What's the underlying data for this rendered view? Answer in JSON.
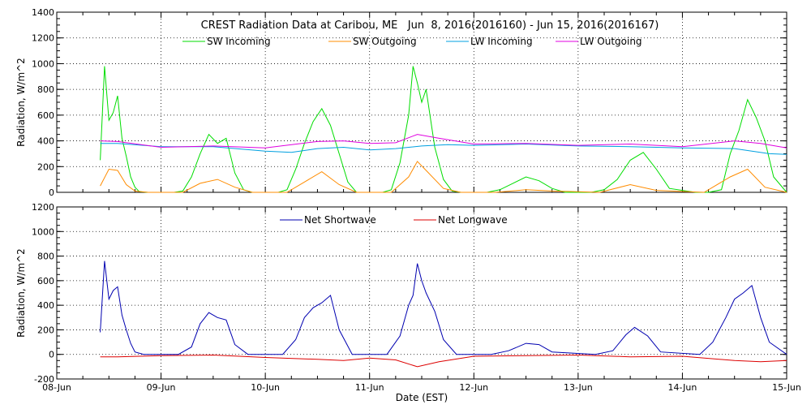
{
  "chart_data": [
    {
      "type": "line",
      "title": "CREST Radiation Data at Caribou, ME   Jun  8, 2016(2016160) - Jun 15, 2016(2016167)",
      "xlabel": "",
      "ylabel": "Radiation, W/m^2",
      "xlim": [
        "2016-06-08",
        "2016-06-15"
      ],
      "ylim": [
        0,
        1400
      ],
      "yticks": [
        0,
        200,
        400,
        600,
        800,
        1000,
        1200,
        1400
      ],
      "grid": true,
      "legend_position": "top",
      "series": [
        {
          "name": "SW Incoming",
          "color": "#00dd00",
          "x": [
            "2016-06-08T10:00",
            "2016-06-08T11:00",
            "2016-06-08T12:00",
            "2016-06-08T13:00",
            "2016-06-08T14:00",
            "2016-06-08T15:00",
            "2016-06-08T16:00",
            "2016-06-08T17:00",
            "2016-06-08T18:00",
            "2016-06-08T19:00",
            "2016-06-08T21:00",
            "2016-06-09T03:00",
            "2016-06-09T05:00",
            "2016-06-09T07:00",
            "2016-06-09T09:00",
            "2016-06-09T11:00",
            "2016-06-09T13:00",
            "2016-06-09T15:00",
            "2016-06-09T17:00",
            "2016-06-09T19:00",
            "2016-06-09T21:00",
            "2016-06-10T03:00",
            "2016-06-10T05:00",
            "2016-06-10T07:00",
            "2016-06-10T09:00",
            "2016-06-10T11:00",
            "2016-06-10T13:00",
            "2016-06-10T15:00",
            "2016-06-10T17:00",
            "2016-06-10T19:00",
            "2016-06-10T21:00",
            "2016-06-11T03:00",
            "2016-06-11T05:00",
            "2016-06-11T07:00",
            "2016-06-11T09:00",
            "2016-06-11T10:00",
            "2016-06-11T11:00",
            "2016-06-11T12:00",
            "2016-06-11T13:00",
            "2016-06-11T15:00",
            "2016-06-11T17:00",
            "2016-06-11T19:00",
            "2016-06-11T21:00",
            "2016-06-12T03:00",
            "2016-06-12T06:00",
            "2016-06-12T09:00",
            "2016-06-12T12:00",
            "2016-06-12T15:00",
            "2016-06-12T18:00",
            "2016-06-12T21:00",
            "2016-06-13T03:00",
            "2016-06-13T06:00",
            "2016-06-13T09:00",
            "2016-06-13T12:00",
            "2016-06-13T15:00",
            "2016-06-13T18:00",
            "2016-06-13T21:00",
            "2016-06-14T03:00",
            "2016-06-14T06:00",
            "2016-06-14T09:00",
            "2016-06-14T11:00",
            "2016-06-14T13:00",
            "2016-06-14T15:00",
            "2016-06-14T17:00",
            "2016-06-14T19:00",
            "2016-06-14T21:00",
            "2016-06-15T00:00"
          ],
          "values": [
            250,
            980,
            560,
            620,
            750,
            420,
            280,
            120,
            40,
            5,
            0,
            0,
            10,
            120,
            300,
            450,
            380,
            420,
            150,
            20,
            0,
            0,
            20,
            180,
            380,
            550,
            650,
            520,
            300,
            80,
            0,
            0,
            20,
            230,
            600,
            980,
            850,
            700,
            800,
            350,
            100,
            10,
            0,
            0,
            20,
            70,
            120,
            90,
            30,
            0,
            0,
            20,
            100,
            250,
            310,
            180,
            30,
            0,
            0,
            20,
            300,
            480,
            720,
            580,
            400,
            120,
            0
          ]
        },
        {
          "name": "SW Outgoing",
          "color": "#ff8c00",
          "x": [
            "2016-06-08T10:00",
            "2016-06-08T12:00",
            "2016-06-08T14:00",
            "2016-06-08T16:00",
            "2016-06-08T18:00",
            "2016-06-08T21:00",
            "2016-06-09T05:00",
            "2016-06-09T09:00",
            "2016-06-09T13:00",
            "2016-06-09T17:00",
            "2016-06-09T21:00",
            "2016-06-10T05:00",
            "2016-06-10T09:00",
            "2016-06-10T13:00",
            "2016-06-10T17:00",
            "2016-06-10T21:00",
            "2016-06-11T05:00",
            "2016-06-11T09:00",
            "2016-06-11T11:00",
            "2016-06-11T13:00",
            "2016-06-11T17:00",
            "2016-06-11T21:00",
            "2016-06-12T05:00",
            "2016-06-12T12:00",
            "2016-06-12T18:00",
            "2016-06-13T05:00",
            "2016-06-13T12:00",
            "2016-06-13T18:00",
            "2016-06-14T05:00",
            "2016-06-14T11:00",
            "2016-06-14T15:00",
            "2016-06-14T19:00",
            "2016-06-15T00:00"
          ],
          "values": [
            50,
            180,
            170,
            60,
            10,
            0,
            0,
            70,
            100,
            40,
            0,
            0,
            80,
            160,
            60,
            0,
            0,
            120,
            240,
            170,
            30,
            0,
            0,
            20,
            10,
            0,
            60,
            15,
            0,
            120,
            180,
            40,
            0
          ]
        },
        {
          "name": "LW Incoming",
          "color": "#00a0e0",
          "x": [
            "2016-06-08T10:00",
            "2016-06-08T14:00",
            "2016-06-09T00:00",
            "2016-06-09T12:00",
            "2016-06-10T00:00",
            "2016-06-10T06:00",
            "2016-06-10T12:00",
            "2016-06-10T18:00",
            "2016-06-11T00:00",
            "2016-06-11T06:00",
            "2016-06-11T12:00",
            "2016-06-11T18:00",
            "2016-06-12T00:00",
            "2016-06-12T12:00",
            "2016-06-13T00:00",
            "2016-06-13T12:00",
            "2016-06-14T00:00",
            "2016-06-14T12:00",
            "2016-06-14T20:00",
            "2016-06-15T00:00"
          ],
          "values": [
            380,
            380,
            355,
            355,
            320,
            310,
            340,
            350,
            330,
            340,
            360,
            370,
            365,
            375,
            360,
            355,
            345,
            340,
            300,
            295
          ]
        },
        {
          "name": "LW Outgoing",
          "color": "#e000e0",
          "x": [
            "2016-06-08T10:00",
            "2016-06-08T14:00",
            "2016-06-09T00:00",
            "2016-06-09T12:00",
            "2016-06-10T00:00",
            "2016-06-10T12:00",
            "2016-06-10T18:00",
            "2016-06-11T00:00",
            "2016-06-11T06:00",
            "2016-06-11T11:00",
            "2016-06-11T16:00",
            "2016-06-12T00:00",
            "2016-06-12T12:00",
            "2016-06-13T00:00",
            "2016-06-13T12:00",
            "2016-06-14T00:00",
            "2016-06-14T12:00",
            "2016-06-14T18:00",
            "2016-06-15T00:00"
          ],
          "values": [
            400,
            395,
            350,
            360,
            345,
            395,
            400,
            380,
            385,
            450,
            420,
            375,
            380,
            365,
            375,
            355,
            400,
            380,
            345
          ]
        }
      ]
    },
    {
      "type": "line",
      "title": "",
      "xlabel": "Date (EST)",
      "ylabel": "Radiation, W/m^2",
      "xlim": [
        "2016-06-08",
        "2016-06-15"
      ],
      "ylim": [
        -200,
        1200
      ],
      "yticks": [
        -200,
        0,
        200,
        400,
        600,
        800,
        1000,
        1200
      ],
      "xticks": [
        "2016-06-08",
        "2016-06-09",
        "2016-06-10",
        "2016-06-11",
        "2016-06-12",
        "2016-06-13",
        "2016-06-14",
        "2016-06-15"
      ],
      "xtick_labels": [
        "08-Jun",
        "09-Jun",
        "10-Jun",
        "11-Jun",
        "12-Jun",
        "13-Jun",
        "14-Jun",
        "15-Jun"
      ],
      "grid": true,
      "legend_position": "top",
      "series": [
        {
          "name": "Net Shortwave",
          "color": "#0000b0",
          "x": [
            "2016-06-08T10:00",
            "2016-06-08T11:00",
            "2016-06-08T12:00",
            "2016-06-08T13:00",
            "2016-06-08T14:00",
            "2016-06-08T15:00",
            "2016-06-08T16:00",
            "2016-06-08T17:00",
            "2016-06-08T18:00",
            "2016-06-08T20:00",
            "2016-06-09T04:00",
            "2016-06-09T07:00",
            "2016-06-09T09:00",
            "2016-06-09T11:00",
            "2016-06-09T13:00",
            "2016-06-09T15:00",
            "2016-06-09T17:00",
            "2016-06-09T20:00",
            "2016-06-10T04:00",
            "2016-06-10T07:00",
            "2016-06-10T09:00",
            "2016-06-10T11:00",
            "2016-06-10T13:00",
            "2016-06-10T15:00",
            "2016-06-10T17:00",
            "2016-06-10T20:00",
            "2016-06-11T04:00",
            "2016-06-11T07:00",
            "2016-06-11T09:00",
            "2016-06-11T10:00",
            "2016-06-11T11:00",
            "2016-06-11T12:00",
            "2016-06-11T13:00",
            "2016-06-11T15:00",
            "2016-06-11T17:00",
            "2016-06-11T20:00",
            "2016-06-12T04:00",
            "2016-06-12T08:00",
            "2016-06-12T12:00",
            "2016-06-12T15:00",
            "2016-06-12T18:00",
            "2016-06-13T04:00",
            "2016-06-13T08:00",
            "2016-06-13T11:00",
            "2016-06-13T13:00",
            "2016-06-13T16:00",
            "2016-06-13T19:00",
            "2016-06-14T04:00",
            "2016-06-14T07:00",
            "2016-06-14T10:00",
            "2016-06-14T12:00",
            "2016-06-14T14:00",
            "2016-06-14T16:00",
            "2016-06-14T18:00",
            "2016-06-14T20:00",
            "2016-06-15T00:00"
          ],
          "values": [
            180,
            760,
            450,
            520,
            550,
            320,
            200,
            90,
            20,
            0,
            0,
            60,
            250,
            340,
            300,
            280,
            80,
            0,
            0,
            120,
            300,
            380,
            420,
            480,
            200,
            0,
            0,
            150,
            400,
            480,
            740,
            600,
            500,
            350,
            120,
            0,
            0,
            30,
            90,
            80,
            20,
            0,
            30,
            160,
            220,
            150,
            20,
            0,
            100,
            300,
            450,
            500,
            560,
            300,
            100,
            0
          ]
        },
        {
          "name": "Net Longwave",
          "color": "#dd0000",
          "x": [
            "2016-06-08T10:00",
            "2016-06-08T14:00",
            "2016-06-09T00:00",
            "2016-06-09T12:00",
            "2016-06-10T00:00",
            "2016-06-10T12:00",
            "2016-06-10T18:00",
            "2016-06-11T00:00",
            "2016-06-11T06:00",
            "2016-06-11T11:00",
            "2016-06-11T16:00",
            "2016-06-12T00:00",
            "2016-06-12T12:00",
            "2016-06-13T00:00",
            "2016-06-13T12:00",
            "2016-06-14T00:00",
            "2016-06-14T12:00",
            "2016-06-14T18:00",
            "2016-06-15T00:00"
          ],
          "values": [
            -20,
            -20,
            -10,
            -5,
            -25,
            -40,
            -50,
            -30,
            -45,
            -100,
            -60,
            -15,
            -10,
            -5,
            -20,
            -15,
            -50,
            -60,
            -50
          ]
        }
      ]
    }
  ]
}
